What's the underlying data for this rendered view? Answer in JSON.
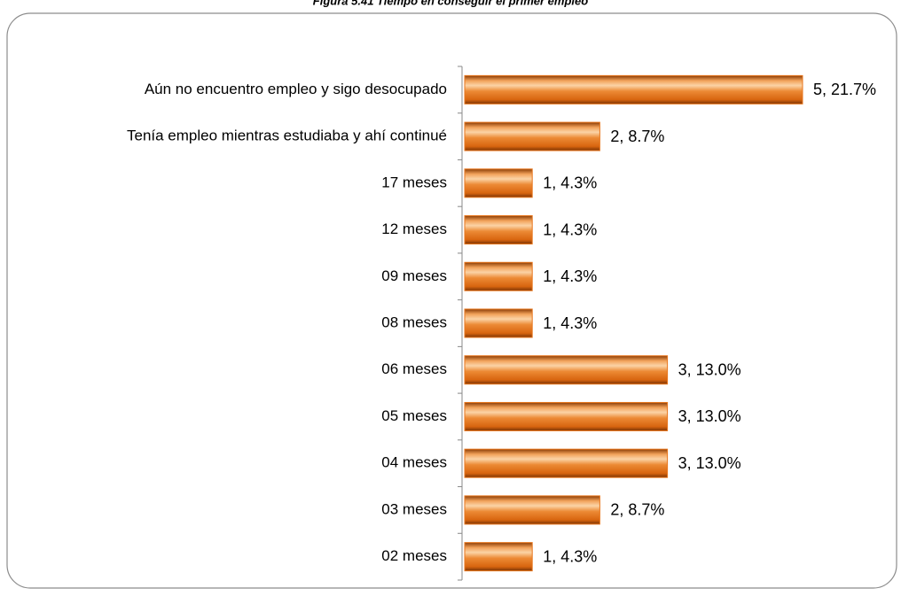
{
  "chart_data": {
    "type": "bar",
    "orientation": "horizontal",
    "title": "Figura 5.41 Tiempo en conseguir el primer empleo",
    "categories": [
      "Aún no encuentro empleo y sigo desocupado",
      "Tenía empleo mientras estudiaba y ahí continué",
      "17 meses",
      "12 meses",
      "09 meses",
      "08 meses",
      "06 meses",
      "05 meses",
      "04 meses",
      "03 meses",
      "02 meses"
    ],
    "values": [
      5,
      2,
      1,
      1,
      1,
      1,
      3,
      3,
      3,
      2,
      1
    ],
    "value_labels": [
      "5, 21.7%",
      "2, 8.7%",
      "1, 4.3%",
      "1, 4.3%",
      "1, 4.3%",
      "1, 4.3%",
      "3, 13.0%",
      "3, 13.0%",
      "3, 13.0%",
      "2, 8.7%",
      "1, 4.3%"
    ],
    "color": "#e8761c",
    "xlim": [
      0,
      5
    ]
  }
}
